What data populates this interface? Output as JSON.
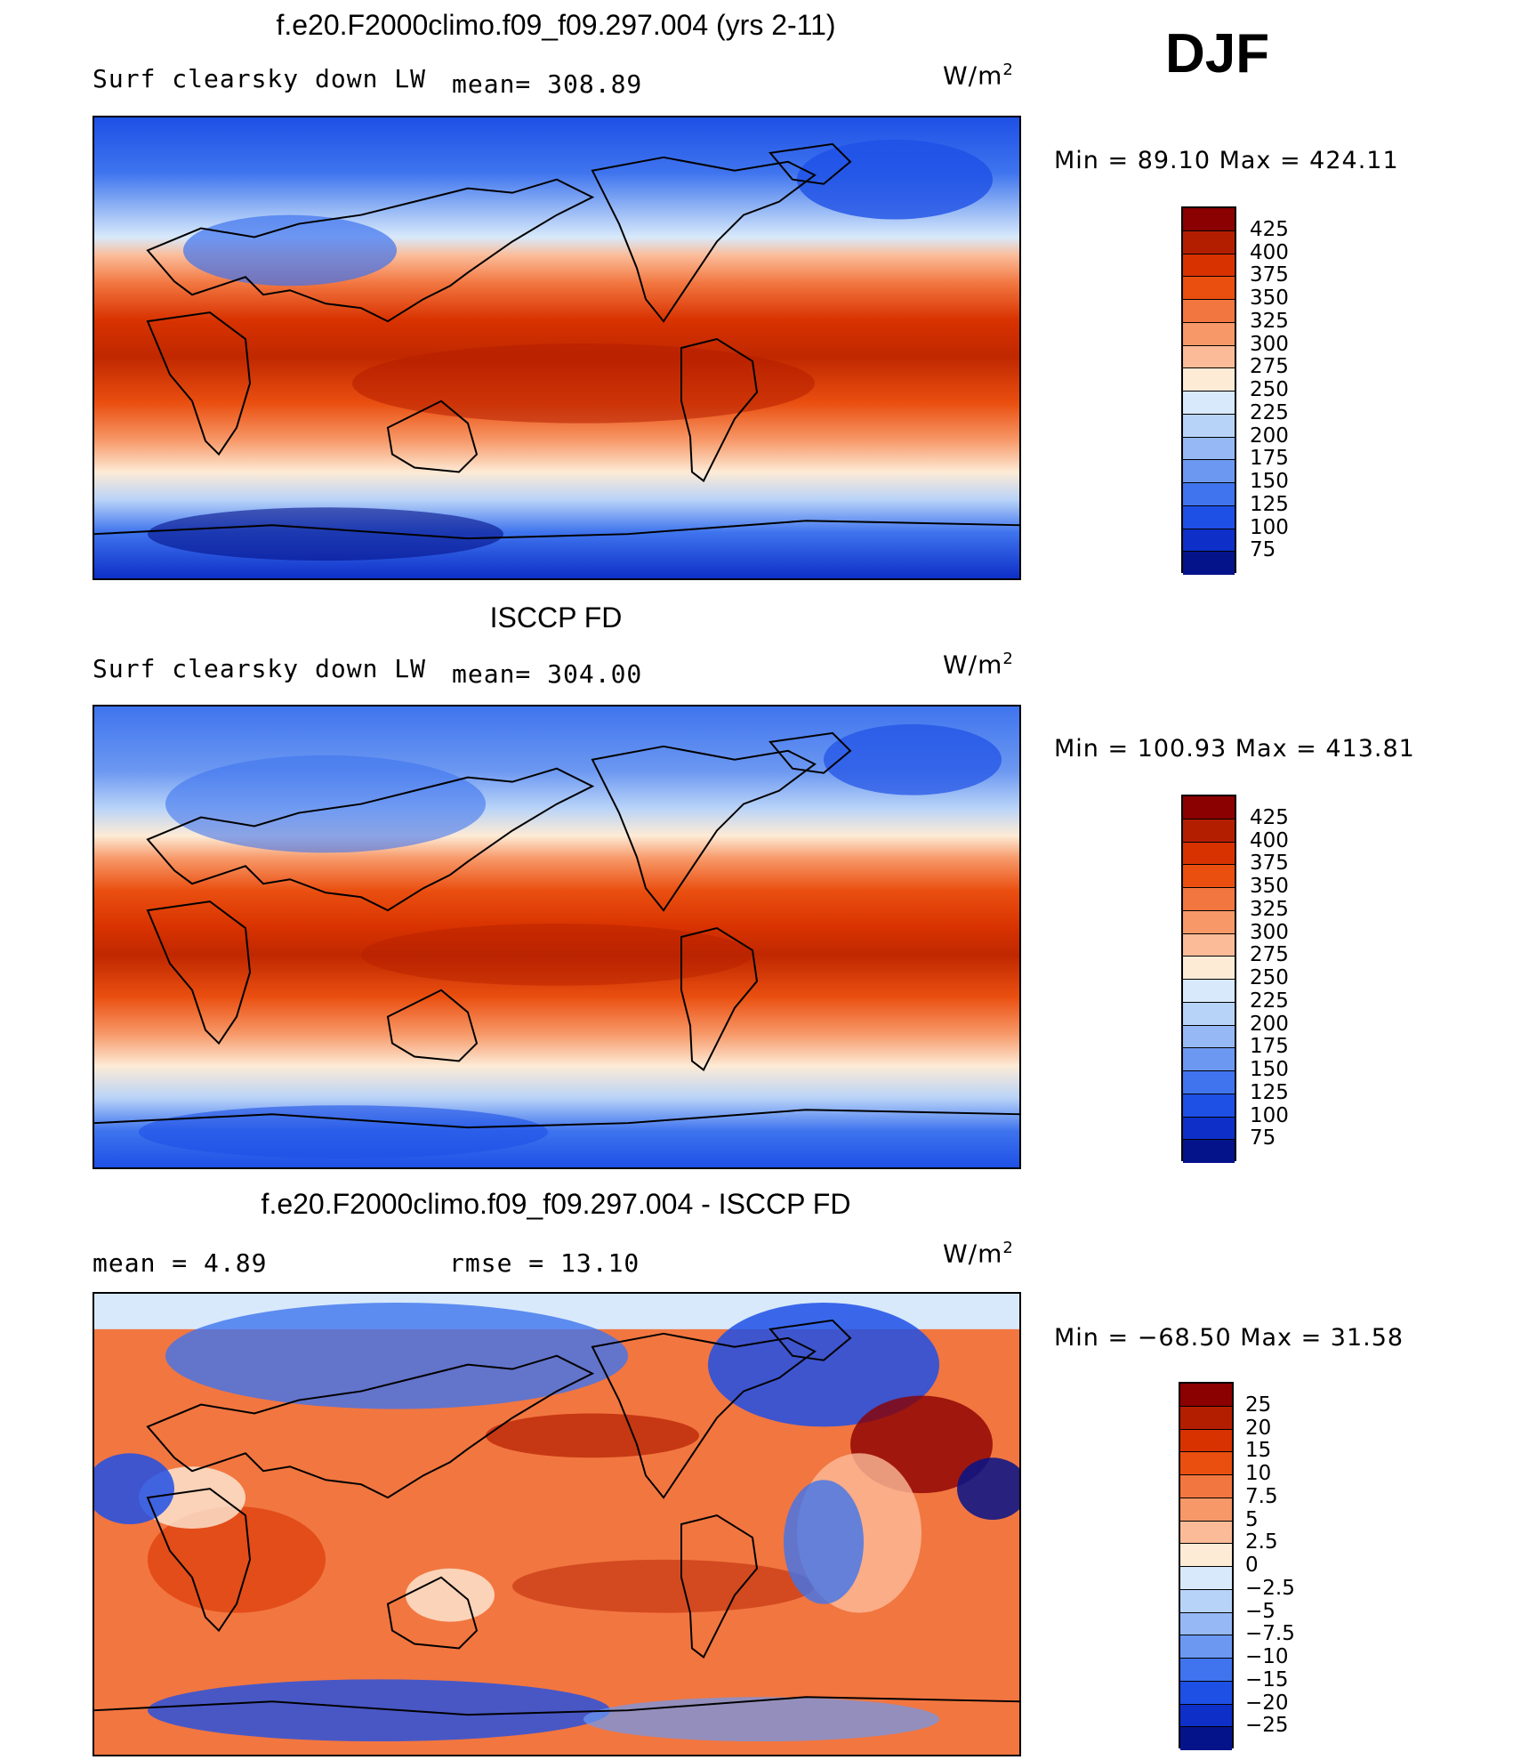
{
  "season": "DJF",
  "units_base": "W/m",
  "units_exp": "2",
  "panels": [
    {
      "id": "model",
      "title": "f.e20.F2000climo.f09_f09.297.004 (yrs 2-11)",
      "left_label": "Surf clearsky down LW",
      "stat_label": "mean= 308.89",
      "minmax": "Min =   89.10 Max = 424.11",
      "levels": [
        "425",
        "400",
        "375",
        "350",
        "325",
        "300",
        "275",
        "250",
        "225",
        "200",
        "175",
        "150",
        "125",
        "100",
        "75"
      ],
      "colors": [
        "#8b0000",
        "#b41e00",
        "#d83200",
        "#ea4f10",
        "#f27640",
        "#f79868",
        "#fbbb98",
        "#fdebd6",
        "#d8e9fb",
        "#b8d3f8",
        "#96b8f5",
        "#6c98f1",
        "#3f74ee",
        "#1e50e6",
        "#0e2fc8",
        "#05138a"
      ]
    },
    {
      "id": "obs",
      "title": "ISCCP FD",
      "left_label": "Surf clearsky down LW",
      "stat_label": "mean= 304.00",
      "minmax": "Min = 100.93 Max = 413.81",
      "levels": [
        "425",
        "400",
        "375",
        "350",
        "325",
        "300",
        "275",
        "250",
        "225",
        "200",
        "175",
        "150",
        "125",
        "100",
        "75"
      ],
      "colors": [
        "#8b0000",
        "#b41e00",
        "#d83200",
        "#ea4f10",
        "#f27640",
        "#f79868",
        "#fbbb98",
        "#fdebd6",
        "#d8e9fb",
        "#b8d3f8",
        "#96b8f5",
        "#6c98f1",
        "#3f74ee",
        "#1e50e6",
        "#0e2fc8",
        "#05138a"
      ]
    },
    {
      "id": "diff",
      "title": "f.e20.F2000climo.f09_f09.297.004 - ISCCP FD",
      "left_label": "mean =    4.89",
      "stat_label": "rmse =   13.10",
      "minmax": "Min = −68.50 Max =   31.58",
      "levels": [
        "25",
        "20",
        "15",
        "10",
        "7.5",
        "5",
        "2.5",
        "0",
        "−2.5",
        "−5",
        "−7.5",
        "−10",
        "−15",
        "−20",
        "−25"
      ],
      "colors": [
        "#8b0000",
        "#b41e00",
        "#d83200",
        "#ea4f10",
        "#f27640",
        "#f79868",
        "#fbbb98",
        "#fdebd6",
        "#d8e9fb",
        "#b8d3f8",
        "#96b8f5",
        "#6c98f1",
        "#3f74ee",
        "#1e50e6",
        "#0e2fc8",
        "#05138a"
      ]
    }
  ]
}
